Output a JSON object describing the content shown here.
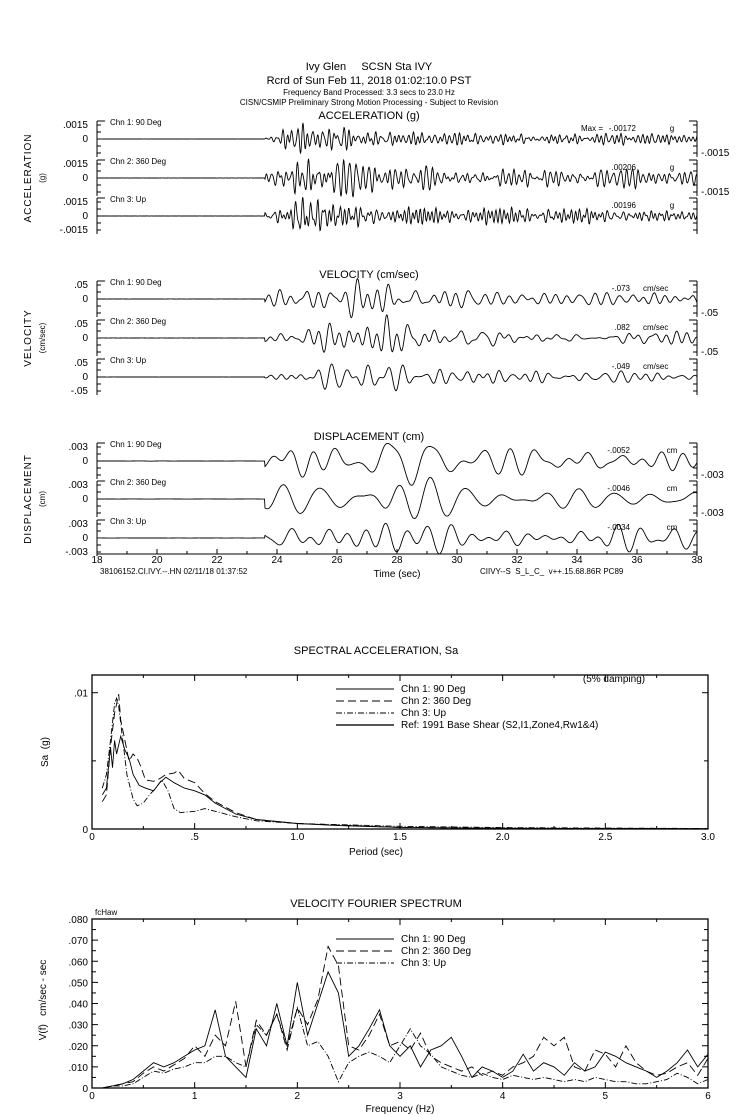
{
  "header": {
    "line1": "Ivy Glen     SCSN Sta IVY",
    "line2": "Rcrd of Sun Feb 11, 2018 01:02:10.0 PST",
    "line3": "Frequency Band Processed: 3.3 secs to 23.0 Hz",
    "line4": "CISN/CSMIP Preliminary Strong Motion Processing - Subject to Revision"
  },
  "timeseries": {
    "x_ticks": [
      "18",
      "20",
      "22",
      "24",
      "26",
      "28",
      "30",
      "32",
      "34",
      "36",
      "38"
    ],
    "x_range": [
      18,
      38
    ],
    "xlabel": "Time (sec)",
    "footer_left": "38106152.CI.IVY.--.HN 02/11/18 01:37:52",
    "footer_right": "CIIVY--S  S_L_C_  v++.15.68.86R PC89",
    "max_prefix": "Max = ",
    "panels": [
      {
        "title": "ACCELERATION (g)",
        "ylabel": "ACCELERATION",
        "yunit": "(g)",
        "ytick_pos": ".0015",
        "ytick_zero": "0",
        "ytick_neg": "-.0015",
        "scale": 0.0015,
        "channels": [
          {
            "label": "Chn 1: 90 Deg",
            "max": "-.00172",
            "unit": "g",
            "peak": -0.00172
          },
          {
            "label": "Chn 2: 360 Deg",
            "max": ".00206",
            "unit": "g",
            "peak": 0.00206
          },
          {
            "label": "Chn 3: Up",
            "max": ".00196",
            "unit": "g",
            "peak": 0.00196
          }
        ]
      },
      {
        "title": "VELOCITY (cm/sec)",
        "ylabel": "VELOCITY",
        "yunit": "(cm/sec)",
        "ytick_pos": ".05",
        "ytick_zero": "0",
        "ytick_neg": "-.05",
        "scale": 0.05,
        "channels": [
          {
            "label": "Chn 1: 90 Deg",
            "max": "-.073",
            "unit": "cm/sec",
            "peak": -0.073
          },
          {
            "label": "Chn 2: 360 Deg",
            "max": ".082",
            "unit": "cm/sec",
            "peak": 0.082
          },
          {
            "label": "Chn 3: Up",
            "max": "-.049",
            "unit": "cm/sec",
            "peak": -0.049
          }
        ]
      },
      {
        "title": "DISPLACEMENT (cm)",
        "ylabel": "DISPLACEMENT",
        "yunit": "(cm)",
        "ytick_pos": ".003",
        "ytick_zero": "0",
        "ytick_neg": "-.003",
        "scale": 0.003,
        "channels": [
          {
            "label": "Chn 1: 90 Deg",
            "max": "-.0052",
            "unit": "cm",
            "peak": -0.0052
          },
          {
            "label": "Chn 2: 360 Deg",
            "max": "-.0046",
            "unit": "cm",
            "peak": -0.0046
          },
          {
            "label": "Chn 3: Up",
            "max": "-.0034",
            "unit": "cm",
            "peak": -0.0034
          }
        ]
      }
    ]
  },
  "chart_data": [
    {
      "type": "line",
      "title": "SPECTRAL ACCELERATION, Sa",
      "xlabel": "Period (sec)",
      "ylabel": "Sa  (g)",
      "annotation": "(5% damping)",
      "xlim": [
        0,
        3.0
      ],
      "ylim": [
        0,
        0.0113
      ],
      "x_ticks": [
        "0",
        ".5",
        "1.0",
        "1.5",
        "2.0",
        "2.5",
        "3.0"
      ],
      "x_tick_values": [
        0,
        0.5,
        1.0,
        1.5,
        2.0,
        2.5,
        3.0
      ],
      "y_ticks": [
        "0",
        ".01"
      ],
      "y_tick_values": [
        0,
        0.01
      ],
      "legend": "top-right",
      "series": [
        {
          "name": "Chn 1: 90 Deg",
          "style": "solid",
          "points": [
            [
              0.05,
              0.0025
            ],
            [
              0.07,
              0.003
            ],
            [
              0.09,
              0.006
            ],
            [
              0.1,
              0.0045
            ],
            [
              0.11,
              0.0065
            ],
            [
              0.12,
              0.0055
            ],
            [
              0.14,
              0.0068
            ],
            [
              0.16,
              0.0058
            ],
            [
              0.18,
              0.0052
            ],
            [
              0.2,
              0.004
            ],
            [
              0.23,
              0.0032
            ],
            [
              0.26,
              0.003
            ],
            [
              0.3,
              0.0028
            ],
            [
              0.33,
              0.0034
            ],
            [
              0.36,
              0.0038
            ],
            [
              0.4,
              0.0034
            ],
            [
              0.45,
              0.003
            ],
            [
              0.5,
              0.0028
            ],
            [
              0.55,
              0.0025
            ],
            [
              0.6,
              0.0019
            ],
            [
              0.7,
              0.0011
            ],
            [
              0.8,
              0.0007
            ],
            [
              1.0,
              0.0004
            ],
            [
              1.2,
              0.00025
            ],
            [
              1.5,
              0.00012
            ],
            [
              2.0,
              5e-05
            ],
            [
              3.0,
              2e-05
            ]
          ]
        },
        {
          "name": "Chn 2: 360 Deg",
          "style": "dashed",
          "points": [
            [
              0.05,
              0.002
            ],
            [
              0.07,
              0.0025
            ],
            [
              0.09,
              0.006
            ],
            [
              0.11,
              0.0085
            ],
            [
              0.13,
              0.0099
            ],
            [
              0.14,
              0.008
            ],
            [
              0.16,
              0.0065
            ],
            [
              0.18,
              0.005
            ],
            [
              0.2,
              0.0055
            ],
            [
              0.22,
              0.0052
            ],
            [
              0.24,
              0.0045
            ],
            [
              0.26,
              0.0036
            ],
            [
              0.3,
              0.0035
            ],
            [
              0.33,
              0.0037
            ],
            [
              0.36,
              0.004
            ],
            [
              0.4,
              0.0041
            ],
            [
              0.42,
              0.0043
            ],
            [
              0.45,
              0.0037
            ],
            [
              0.5,
              0.0034
            ],
            [
              0.55,
              0.0026
            ],
            [
              0.6,
              0.002
            ],
            [
              0.7,
              0.0012
            ],
            [
              0.8,
              0.0007
            ],
            [
              1.0,
              0.0004
            ],
            [
              1.5,
              0.00012
            ],
            [
              2.0,
              5e-05
            ],
            [
              3.0,
              2e-05
            ]
          ]
        },
        {
          "name": "Chn 3: Up",
          "style": "dashdot",
          "points": [
            [
              0.05,
              0.003
            ],
            [
              0.07,
              0.004
            ],
            [
              0.09,
              0.0065
            ],
            [
              0.11,
              0.0092
            ],
            [
              0.12,
              0.0096
            ],
            [
              0.13,
              0.009
            ],
            [
              0.15,
              0.0065
            ],
            [
              0.17,
              0.004
            ],
            [
              0.2,
              0.0022
            ],
            [
              0.22,
              0.0017
            ],
            [
              0.25,
              0.0019
            ],
            [
              0.28,
              0.0025
            ],
            [
              0.31,
              0.003
            ],
            [
              0.34,
              0.0036
            ],
            [
              0.37,
              0.0028
            ],
            [
              0.4,
              0.0015
            ],
            [
              0.43,
              0.0012
            ],
            [
              0.5,
              0.0013
            ],
            [
              0.55,
              0.0015
            ],
            [
              0.6,
              0.0013
            ],
            [
              0.7,
              0.0009
            ],
            [
              0.8,
              0.0006
            ],
            [
              1.0,
              0.0004
            ],
            [
              1.5,
              0.0002
            ],
            [
              2.0,
              0.0001
            ],
            [
              3.0,
              4e-05
            ]
          ]
        },
        {
          "name": "Ref: 1991 Base Shear (S2,I1,Zone4,Rw1&4)",
          "style": "thick",
          "points": []
        }
      ]
    },
    {
      "type": "line",
      "title": "VELOCITY FOURIER SPECTRUM",
      "xlabel": "Frequency (Hz)",
      "ylabel": "V(f)   cm/sec - sec",
      "corner_label": "fcHaw",
      "xlim": [
        0,
        6
      ],
      "ylim": [
        0,
        0.08
      ],
      "x_ticks": [
        "0",
        "1",
        "2",
        "3",
        "4",
        "5",
        "6"
      ],
      "x_tick_values": [
        0,
        1,
        2,
        3,
        4,
        5,
        6
      ],
      "y_ticks": [
        "0",
        ".010",
        ".020",
        ".030",
        ".040",
        ".050",
        ".060",
        ".070",
        ".080"
      ],
      "y_tick_values": [
        0,
        0.01,
        0.02,
        0.03,
        0.04,
        0.05,
        0.06,
        0.07,
        0.08
      ],
      "legend": "top-center",
      "x_step": 0.1,
      "series": [
        {
          "name": "Chn 1: 90 Deg",
          "style": "solid",
          "values": [
            0,
            0,
            0.001,
            0.002,
            0.004,
            0.008,
            0.012,
            0.01,
            0.012,
            0.015,
            0.018,
            0.02,
            0.037,
            0.015,
            0.01,
            0.005,
            0.028,
            0.02,
            0.04,
            0.02,
            0.05,
            0.025,
            0.04,
            0.055,
            0.045,
            0.015,
            0.02,
            0.028,
            0.037,
            0.02,
            0.015,
            0.02,
            0.01,
            0.018,
            0.02,
            0.024,
            0.015,
            0.005,
            0.01,
            0.008,
            0.005,
            0.008,
            0.016,
            0.008,
            0.012,
            0.01,
            0.006,
            0.012,
            0.008,
            0.01,
            0.017,
            0.015,
            0.012,
            0.01,
            0.008,
            0.005,
            0.008,
            0.012,
            0.018,
            0.01,
            0.016
          ]
        },
        {
          "name": "Chn 2: 360 Deg",
          "style": "dashed",
          "values": [
            0,
            0,
            0.001,
            0.002,
            0.003,
            0.007,
            0.01,
            0.008,
            0.011,
            0.014,
            0.02,
            0.015,
            0.025,
            0.02,
            0.041,
            0.01,
            0.032,
            0.025,
            0.035,
            0.018,
            0.038,
            0.03,
            0.042,
            0.067,
            0.058,
            0.02,
            0.018,
            0.025,
            0.035,
            0.02,
            0.022,
            0.018,
            0.026,
            0.015,
            0.012,
            0.01,
            0.008,
            0.01,
            0.006,
            0.008,
            0.006,
            0.01,
            0.012,
            0.015,
            0.024,
            0.02,
            0.024,
            0.01,
            0.008,
            0.018,
            0.016,
            0.01,
            0.02,
            0.012,
            0.008,
            0.006,
            0.007,
            0.01,
            0.012,
            0.006,
            0.014
          ]
        },
        {
          "name": "Chn 3: Up",
          "style": "dashdot",
          "values": [
            0,
            0,
            0.001,
            0.001,
            0.002,
            0.005,
            0.008,
            0.007,
            0.009,
            0.01,
            0.012,
            0.012,
            0.015,
            0.015,
            0.012,
            0.01,
            0.03,
            0.025,
            0.035,
            0.02,
            0.038,
            0.02,
            0.022,
            0.015,
            0.003,
            0.012,
            0.015,
            0.017,
            0.015,
            0.012,
            0.02,
            0.028,
            0.02,
            0.016,
            0.01,
            0.008,
            0.006,
            0.005,
            0.007,
            0.005,
            0.004,
            0.006,
            0.005,
            0.004,
            0.005,
            0.004,
            0.003,
            0.004,
            0.003,
            0.005,
            0.004,
            0.003,
            0.003,
            0.002,
            0.002,
            0.003,
            0.004,
            0.007,
            0.005,
            0.002,
            0.004
          ]
        }
      ]
    }
  ]
}
